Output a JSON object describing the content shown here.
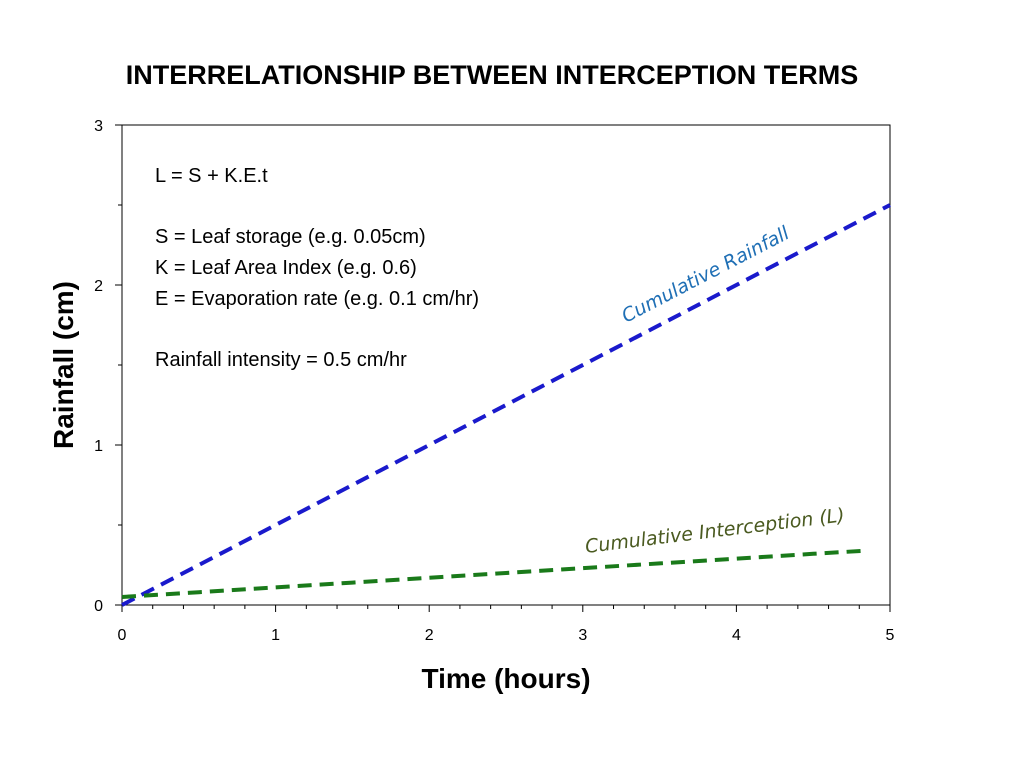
{
  "chart_data": {
    "type": "line",
    "title": "INTERRELATIONSHIP BETWEEN INTERCEPTION TERMS",
    "xlabel": "Time (hours)",
    "ylabel": "Rainfall (cm)",
    "xlim": [
      0,
      5
    ],
    "ylim": [
      0,
      3
    ],
    "x_ticks": [
      "0",
      "1",
      "2",
      "3",
      "4",
      "5"
    ],
    "y_ticks": [
      "0",
      "1",
      "2",
      "3"
    ],
    "grid": false,
    "series": [
      {
        "name": "Cumulative Rainfall",
        "color": "#1a1acc",
        "label_color": "#1f6fb5",
        "style": "dashed",
        "x": [
          0,
          5
        ],
        "y": [
          0,
          2.5
        ]
      },
      {
        "name": "Cumulative Interception (L)",
        "color": "#1a7a1a",
        "label_color": "#4a5a20",
        "style": "dashed",
        "x": [
          0,
          0.5,
          1,
          1.5,
          2,
          2.5,
          3,
          3.5,
          4,
          4.5,
          4.85
        ],
        "y": [
          0.05,
          0.08,
          0.11,
          0.14,
          0.17,
          0.2,
          0.23,
          0.26,
          0.29,
          0.32,
          0.34
        ]
      }
    ],
    "annotations": [
      "L = S + K.E.t",
      "S = Leaf storage (e.g. 0.05cm)",
      "K = Leaf Area Index (e.g. 0.6)",
      "E = Evaporation rate (e.g. 0.1 cm/hr)",
      "Rainfall intensity = 0.5 cm/hr"
    ]
  }
}
